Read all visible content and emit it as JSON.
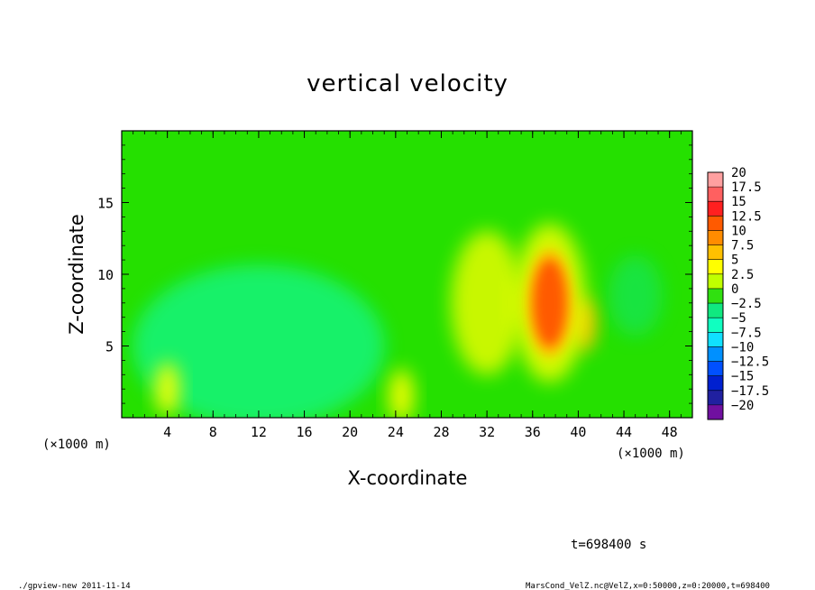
{
  "chart_data": {
    "type": "heatmap",
    "title": "vertical velocity",
    "xlabel": "X-coordinate",
    "ylabel": "Z-coordinate",
    "x_unit": "(×1000 m)",
    "z_unit": "(×1000 m)",
    "xlim": [
      0,
      50
    ],
    "ylim": [
      0,
      20
    ],
    "x_ticks": [
      "4",
      "8",
      "12",
      "16",
      "20",
      "24",
      "28",
      "32",
      "36",
      "40",
      "44",
      "48"
    ],
    "y_ticks": [
      "5",
      "10",
      "15"
    ],
    "colorbar": {
      "labels": [
        "20",
        "17.5",
        "15",
        "12.5",
        "10",
        "7.5",
        "5",
        "2.5",
        "0",
        "−2.5",
        "−5",
        "−7.5",
        "−10",
        "−12.5",
        "−15",
        "−17.5",
        "−20"
      ],
      "colors": [
        "#ffa0a0",
        "#ff6060",
        "#ff2020",
        "#ff5a00",
        "#ff8c00",
        "#ffc000",
        "#ffff00",
        "#c0ff00",
        "#30e010",
        "#10e880",
        "#10ffc0",
        "#10e0ff",
        "#0090ff",
        "#0050ff",
        "#0020d0",
        "#2020a0",
        "#7010a0"
      ]
    },
    "field": {
      "background": "#25e000",
      "features": [
        {
          "x": 37.5,
          "z": 8.0,
          "value": 12,
          "kind": "updraft core"
        },
        {
          "x": 40.5,
          "z": 6.5,
          "value": 8,
          "kind": "updraft"
        },
        {
          "x": 32.0,
          "z": 8.0,
          "value": 5,
          "kind": "updraft band"
        },
        {
          "x": 4.0,
          "z": 2.0,
          "value": 4,
          "kind": "updraft"
        },
        {
          "x": 24.5,
          "z": 1.5,
          "value": 4,
          "kind": "updraft"
        },
        {
          "x": 12.0,
          "z": 5.0,
          "value": -4,
          "kind": "downdraft region"
        },
        {
          "x": 45.0,
          "z": 8.5,
          "value": -3,
          "kind": "downdraft"
        }
      ]
    }
  },
  "time_label": "t=698400 s",
  "footer": {
    "left": "./gpview-new   2011-11-14",
    "right": "MarsCond_VelZ.nc@VelZ,x=0:50000,z=0:20000,t=698400"
  }
}
